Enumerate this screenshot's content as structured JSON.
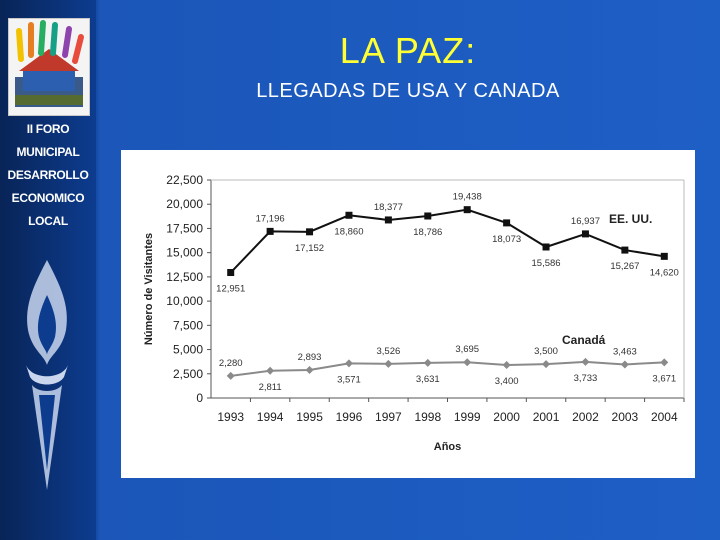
{
  "slide": {
    "title": "LA PAZ:",
    "subtitle": "LLEGADAS DE USA Y CANADA"
  },
  "sidebar": {
    "logo_icon": "hands-house-logo-icon",
    "forum_lines": [
      "II FORO",
      "MUNICIPAL",
      "DESARROLLO",
      "ECONOMICO",
      "LOCAL"
    ],
    "torch_icon": "torch-flame-icon"
  },
  "colors": {
    "title": "#ffff33",
    "background": "#1e5fc6",
    "usa_series": "#111111",
    "canada_series": "#8a8a8a"
  },
  "chart_data": {
    "type": "line",
    "xlabel": "Años",
    "ylabel": "Número de Visitantes",
    "ylim": [
      0,
      22500
    ],
    "yticks": [
      "0",
      "2,500",
      "5,000",
      "7,500",
      "10,000",
      "12,500",
      "15,000",
      "17,500",
      "20,000",
      "22,500"
    ],
    "categories": [
      "1993",
      "1994",
      "1995",
      "1996",
      "1997",
      "1998",
      "1999",
      "2000",
      "2001",
      "2002",
      "2003",
      "2004"
    ],
    "grid": false,
    "series": [
      {
        "name": "EE. UU.",
        "values": [
          12951,
          17196,
          17152,
          18860,
          18377,
          18786,
          19438,
          18073,
          15586,
          16937,
          15267,
          14620
        ],
        "labels": [
          "12,951",
          "17,196",
          "17,152",
          "18,860",
          "18,377",
          "18,786",
          "19,438",
          "18,073",
          "15,586",
          "16,937",
          "15,267",
          "14,620"
        ],
        "color": "#111111",
        "marker": "square"
      },
      {
        "name": "Canadá",
        "values": [
          2280,
          2811,
          2893,
          3571,
          3526,
          3631,
          3695,
          3400,
          3500,
          3733,
          3463,
          3671
        ],
        "labels": [
          "2,280",
          "2,811",
          "2,893",
          "3,571",
          "3,526",
          "3,631",
          "3,695",
          "3,400",
          "3,500",
          "3,733",
          "3,463",
          "3,671"
        ],
        "color": "#8a8a8a",
        "marker": "diamond"
      }
    ]
  }
}
